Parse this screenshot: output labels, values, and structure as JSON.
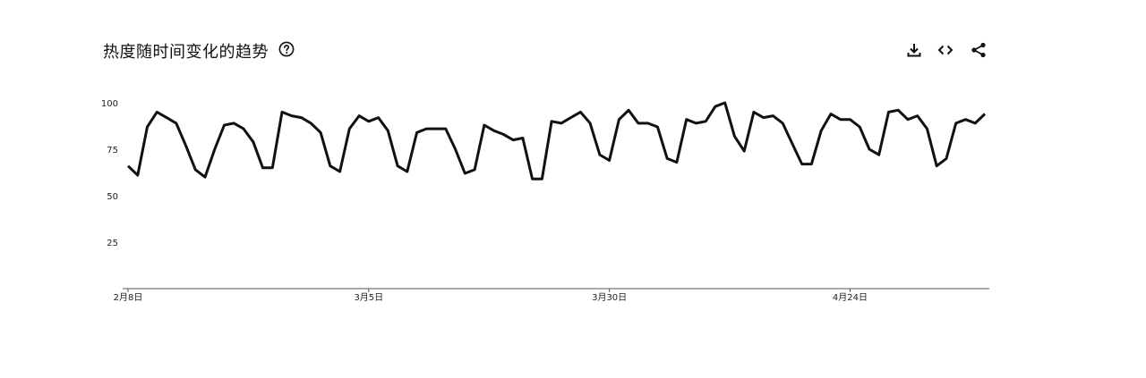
{
  "header": {
    "title": "热度随时间变化的趋势",
    "help_icon": "help-circle-icon",
    "download_icon": "download-icon",
    "embed_icon": "code-icon",
    "share_icon": "share-icon"
  },
  "chart_data": {
    "type": "line",
    "title": "热度随时间变化的趋势",
    "xlabel": "",
    "ylabel": "",
    "ylim": [
      0,
      100
    ],
    "yticks": [
      25,
      50,
      75,
      100
    ],
    "xtick_labels": [
      "2月8日",
      "3月5日",
      "3月30日",
      "4月24日"
    ],
    "xtick_index": [
      0,
      25,
      50,
      75
    ],
    "grid": false,
    "line_color": "#111111",
    "series": [
      {
        "values": [
          66,
          61,
          87,
          95,
          92,
          89,
          77,
          64,
          60,
          75,
          88,
          89,
          86,
          79,
          65,
          65,
          95,
          93,
          92,
          89,
          84,
          66,
          63,
          86,
          93,
          90,
          92,
          85,
          66,
          63,
          84,
          86,
          86,
          86,
          75,
          62,
          64,
          88,
          85,
          83,
          80,
          81,
          59,
          59,
          90,
          89,
          92,
          95,
          89,
          72,
          69,
          91,
          96,
          89,
          89,
          87,
          70,
          68,
          91,
          89,
          90,
          98,
          100,
          82,
          74,
          95,
          92,
          93,
          89,
          78,
          67,
          67,
          85,
          94,
          91,
          91,
          87,
          75,
          72,
          95,
          96,
          91,
          93,
          86,
          66,
          70,
          89,
          91,
          89,
          94
        ]
      }
    ]
  }
}
